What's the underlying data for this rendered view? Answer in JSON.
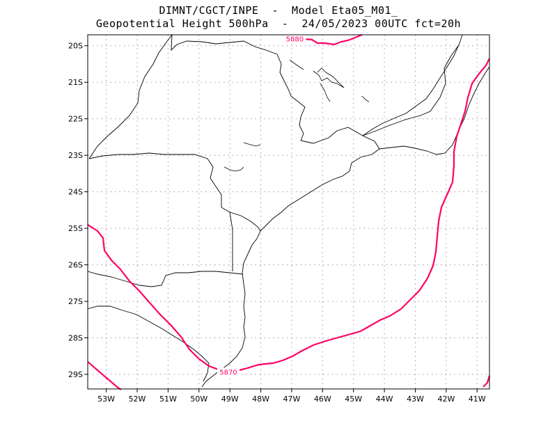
{
  "title": {
    "line1": "DIMNT/CGCT/INPE  -  Model Eta05_M01_",
    "line2": "Geopotential Height 500hPa  -  24/05/2023 00UTC fct=20h"
  },
  "map": {
    "lon_range": [
      -53.6,
      -40.6
    ],
    "lat_range": [
      -29.4,
      -19.7
    ],
    "lon_ticks": [
      {
        "value": -53,
        "label": "53W"
      },
      {
        "value": -52,
        "label": "52W"
      },
      {
        "value": -51,
        "label": "51W"
      },
      {
        "value": -50,
        "label": "50W"
      },
      {
        "value": -49,
        "label": "49W"
      },
      {
        "value": -48,
        "label": "48W"
      },
      {
        "value": -47,
        "label": "47W"
      },
      {
        "value": -46,
        "label": "46W"
      },
      {
        "value": -45,
        "label": "45W"
      },
      {
        "value": -44,
        "label": "44W"
      },
      {
        "value": -43,
        "label": "43W"
      },
      {
        "value": -42,
        "label": "42W"
      },
      {
        "value": -41,
        "label": "41W"
      }
    ],
    "lat_ticks": [
      {
        "value": -20,
        "label": "20S"
      },
      {
        "value": -21,
        "label": "21S"
      },
      {
        "value": -22,
        "label": "22S"
      },
      {
        "value": -23,
        "label": "23S"
      },
      {
        "value": -24,
        "label": "24S"
      },
      {
        "value": -25,
        "label": "25S"
      },
      {
        "value": -26,
        "label": "26S"
      },
      {
        "value": -27,
        "label": "27S"
      },
      {
        "value": -28,
        "label": "28S"
      },
      {
        "value": -29,
        "label": "29S"
      }
    ],
    "contour_color": "#ff0066",
    "contours": [
      {
        "label": "5870",
        "label_at": [
          -49.05,
          -28.95
        ]
      },
      {
        "label": "5880",
        "label_at": [
          -46.9,
          -19.82
        ]
      }
    ]
  }
}
